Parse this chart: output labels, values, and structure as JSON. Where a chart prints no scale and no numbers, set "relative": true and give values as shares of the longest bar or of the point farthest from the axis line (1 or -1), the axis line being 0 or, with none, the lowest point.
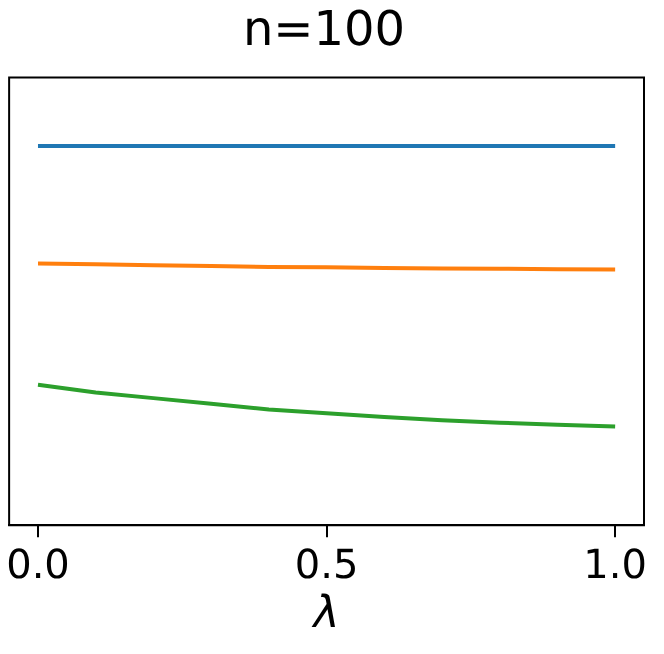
{
  "chart_data": {
    "type": "line",
    "title": "n=100",
    "xlabel": "λ",
    "relative": true,
    "xlim": [
      -0.05,
      1.05
    ],
    "xticks": [
      {
        "value": 0,
        "label": "0.0"
      },
      {
        "value": 0.5,
        "label": "0.5"
      },
      {
        "value": 1,
        "label": "1.0"
      }
    ],
    "grid": false,
    "legend": false,
    "marker": "none",
    "line_style": "solid",
    "x": [
      0,
      0.1,
      0.2,
      0.3,
      0.4,
      0.5,
      0.6,
      0.7,
      0.8,
      0.9,
      1
    ],
    "series": [
      {
        "color": "#1f77b4",
        "values": [
          1,
          1,
          1,
          1,
          1,
          1,
          1,
          1,
          1,
          1,
          1
        ]
      },
      {
        "color": "#ff7f0e",
        "values": [
          0.69,
          0.688,
          0.685,
          0.683,
          0.681,
          0.68,
          0.678,
          0.677,
          0.676,
          0.675,
          0.674
        ]
      },
      {
        "color": "#2ca02c",
        "values": [
          0.37,
          0.35,
          0.335,
          0.32,
          0.305,
          0.295,
          0.285,
          0.277,
          0.27,
          0.265,
          0.26
        ]
      }
    ]
  }
}
